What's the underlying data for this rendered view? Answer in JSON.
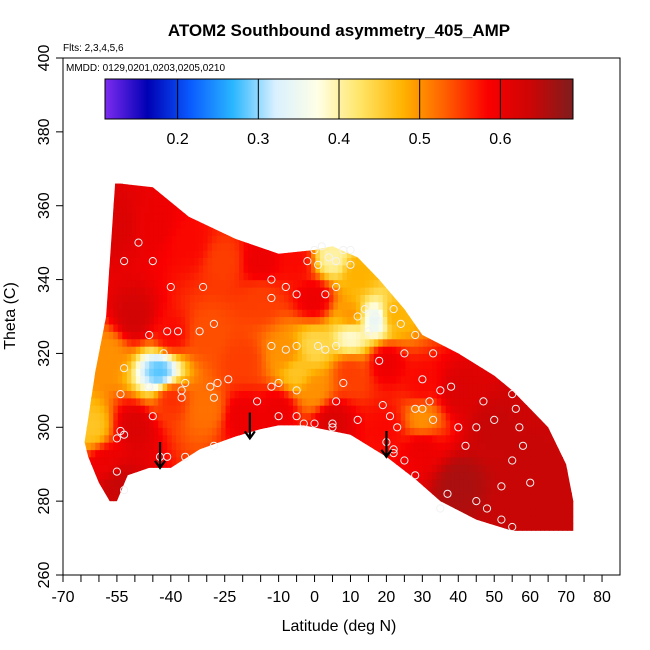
{
  "chart_data": {
    "type": "heatmap",
    "title": "ATOM2 Southbound asymmetry_405_AMP",
    "flights_note": "Flts: 2,3,4,5,6",
    "dates_note": "MMDD: 0129,0201,0203,0205,0210",
    "xlabel": "Latitude (deg N)",
    "ylabel": "Theta (C)",
    "xlim": [
      -70,
      85
    ],
    "ylim": [
      260,
      400
    ],
    "x_ticks": [
      -70,
      -55,
      -40,
      -25,
      -10,
      0,
      10,
      20,
      30,
      40,
      50,
      60,
      70,
      80
    ],
    "x_minor_ticks": [
      -65,
      -60,
      -50,
      -45,
      -35,
      -30,
      -20,
      -15,
      -5,
      5,
      15,
      25,
      35,
      45,
      55,
      65,
      75
    ],
    "y_ticks": [
      260,
      280,
      300,
      320,
      340,
      360,
      380,
      400
    ],
    "colorbar": {
      "min": 0.11,
      "max": 0.69,
      "ticks": [
        0.2,
        0.3,
        0.4,
        0.5,
        0.6
      ],
      "tick_labels": [
        "0.2",
        "0.3",
        "0.4",
        "0.5",
        "0.6"
      ],
      "colors": [
        "#7d2cf0",
        "#0000b4",
        "#0a5aff",
        "#29b6ff",
        "#d9f0ff",
        "#ffffe6",
        "#ffe566",
        "#ffb300",
        "#ff5e00",
        "#fa0000",
        "#cc0505",
        "#7f1d1d"
      ]
    },
    "domain": {
      "top": [
        [
          -55.5,
          366
        ],
        [
          -54,
          366
        ],
        [
          -45,
          365
        ],
        [
          -35,
          357
        ],
        [
          -22,
          351
        ],
        [
          -10,
          347
        ],
        [
          0,
          348
        ],
        [
          5,
          349
        ],
        [
          12,
          346
        ],
        [
          18,
          340
        ],
        [
          25,
          332
        ],
        [
          30,
          325
        ],
        [
          40,
          320
        ],
        [
          50,
          314
        ],
        [
          55,
          310
        ],
        [
          60,
          305
        ],
        [
          65,
          300
        ],
        [
          70,
          290
        ],
        [
          72,
          280
        ],
        [
          72,
          272
        ]
      ],
      "bottom": [
        [
          72,
          272
        ],
        [
          55,
          272
        ],
        [
          45,
          275
        ],
        [
          35,
          280
        ],
        [
          28,
          286
        ],
        [
          20,
          292
        ],
        [
          10,
          298
        ],
        [
          -3,
          300.5
        ],
        [
          -10,
          300.5
        ],
        [
          -15,
          299.5
        ],
        [
          -22,
          297.5
        ],
        [
          -32,
          294
        ],
        [
          -40,
          289
        ],
        [
          -46,
          289
        ],
        [
          -52,
          287
        ],
        [
          -55,
          280
        ],
        [
          -57,
          280
        ],
        [
          -60,
          285
        ],
        [
          -63,
          292
        ],
        [
          -64,
          296
        ],
        [
          -61,
          315
        ],
        [
          -58,
          330
        ],
        [
          -55.5,
          366
        ]
      ]
    },
    "field_anchors": [
      {
        "x": -55,
        "y": 355,
        "v": 0.62
      },
      {
        "x": -45,
        "y": 355,
        "v": 0.6
      },
      {
        "x": -35,
        "y": 350,
        "v": 0.58
      },
      {
        "x": -25,
        "y": 345,
        "v": 0.55
      },
      {
        "x": -15,
        "y": 345,
        "v": 0.6
      },
      {
        "x": -5,
        "y": 345,
        "v": 0.58
      },
      {
        "x": 5,
        "y": 346,
        "v": 0.4
      },
      {
        "x": 12,
        "y": 342,
        "v": 0.48
      },
      {
        "x": -15,
        "y": 335,
        "v": 0.55
      },
      {
        "x": 0,
        "y": 335,
        "v": 0.6
      },
      {
        "x": 10,
        "y": 330,
        "v": 0.5
      },
      {
        "x": 17,
        "y": 329,
        "v": 0.34
      },
      {
        "x": 22,
        "y": 330,
        "v": 0.48
      },
      {
        "x": 10,
        "y": 325,
        "v": 0.38
      },
      {
        "x": 0,
        "y": 322,
        "v": 0.44
      },
      {
        "x": -8,
        "y": 320,
        "v": 0.5
      },
      {
        "x": -20,
        "y": 318,
        "v": 0.55
      },
      {
        "x": -30,
        "y": 325,
        "v": 0.54
      },
      {
        "x": -40,
        "y": 325,
        "v": 0.58
      },
      {
        "x": -50,
        "y": 330,
        "v": 0.63
      },
      {
        "x": -58,
        "y": 320,
        "v": 0.5
      },
      {
        "x": -62,
        "y": 300,
        "v": 0.46
      },
      {
        "x": -58,
        "y": 290,
        "v": 0.6
      },
      {
        "x": -50,
        "y": 300,
        "v": 0.62
      },
      {
        "x": -43,
        "y": 315,
        "v": 0.28
      },
      {
        "x": -40,
        "y": 308,
        "v": 0.56
      },
      {
        "x": -30,
        "y": 305,
        "v": 0.52
      },
      {
        "x": -20,
        "y": 303,
        "v": 0.6
      },
      {
        "x": -10,
        "y": 305,
        "v": 0.6
      },
      {
        "x": 0,
        "y": 310,
        "v": 0.5
      },
      {
        "x": 10,
        "y": 315,
        "v": 0.55
      },
      {
        "x": 20,
        "y": 318,
        "v": 0.6
      },
      {
        "x": 30,
        "y": 312,
        "v": 0.58
      },
      {
        "x": 40,
        "y": 310,
        "v": 0.62
      },
      {
        "x": 50,
        "y": 300,
        "v": 0.64
      },
      {
        "x": 60,
        "y": 290,
        "v": 0.64
      },
      {
        "x": 68,
        "y": 278,
        "v": 0.64
      },
      {
        "x": 40,
        "y": 285,
        "v": 0.66
      },
      {
        "x": 30,
        "y": 295,
        "v": 0.6
      },
      {
        "x": 20,
        "y": 300,
        "v": 0.58
      },
      {
        "x": 5,
        "y": 302,
        "v": 0.62
      },
      {
        "x": 30,
        "y": 302,
        "v": 0.5
      },
      {
        "x": -55,
        "y": 285,
        "v": 0.64
      },
      {
        "x": 55,
        "y": 275,
        "v": 0.64
      },
      {
        "x": -5,
        "y": 315,
        "v": 0.46
      }
    ],
    "points": [
      [
        -53,
        345
      ],
      [
        -49,
        350
      ],
      [
        -45,
        345
      ],
      [
        -40,
        338
      ],
      [
        -31,
        338
      ],
      [
        -38,
        326
      ],
      [
        -41,
        326
      ],
      [
        -46,
        325
      ],
      [
        -42,
        320
      ],
      [
        -28,
        328
      ],
      [
        -32,
        326
      ],
      [
        -27,
        312
      ],
      [
        -24,
        313
      ],
      [
        -29,
        311
      ],
      [
        -36,
        312
      ],
      [
        -37,
        308
      ],
      [
        -46,
        311
      ],
      [
        -45,
        303
      ],
      [
        -53,
        316
      ],
      [
        -54,
        309
      ],
      [
        -55,
        297
      ],
      [
        -54,
        299
      ],
      [
        -53,
        298
      ],
      [
        -55,
        288
      ],
      [
        -53,
        283
      ],
      [
        -41,
        292
      ],
      [
        -43,
        292
      ],
      [
        -36,
        292
      ],
      [
        -28,
        295
      ],
      [
        -16,
        307
      ],
      [
        -12,
        311
      ],
      [
        -10,
        312
      ],
      [
        -8,
        321
      ],
      [
        -12,
        335
      ],
      [
        -12,
        340
      ],
      [
        -8,
        338
      ],
      [
        -5,
        336
      ],
      [
        -2,
        345
      ],
      [
        0,
        348
      ],
      [
        2,
        349
      ],
      [
        4,
        346
      ],
      [
        6,
        345
      ],
      [
        8,
        348
      ],
      [
        10,
        348
      ],
      [
        3,
        336
      ],
      [
        6,
        338
      ],
      [
        -5,
        322
      ],
      [
        1,
        322
      ],
      [
        3,
        321
      ],
      [
        6,
        322
      ],
      [
        12,
        330
      ],
      [
        14,
        332
      ],
      [
        15,
        326
      ],
      [
        17,
        330
      ],
      [
        22,
        332
      ],
      [
        24,
        328
      ],
      [
        25,
        320
      ],
      [
        18,
        318
      ],
      [
        19,
        306
      ],
      [
        21,
        303
      ],
      [
        23,
        300
      ],
      [
        20,
        296
      ],
      [
        22,
        294
      ],
      [
        22,
        293
      ],
      [
        25,
        291
      ],
      [
        -5,
        310
      ],
      [
        -10,
        303
      ],
      [
        -5,
        303
      ],
      [
        5,
        300
      ],
      [
        6,
        307
      ],
      [
        5,
        301
      ],
      [
        8,
        312
      ],
      [
        12,
        302
      ],
      [
        -3,
        301
      ],
      [
        0,
        301
      ],
      [
        28,
        305
      ],
      [
        32,
        307
      ],
      [
        33,
        302
      ],
      [
        35,
        310
      ],
      [
        38,
        311
      ],
      [
        40,
        300
      ],
      [
        47,
        307
      ],
      [
        55,
        309
      ],
      [
        57,
        300
      ],
      [
        58,
        295
      ],
      [
        60,
        285
      ],
      [
        55,
        291
      ],
      [
        52,
        284
      ],
      [
        45,
        280
      ],
      [
        48,
        278
      ],
      [
        52,
        275
      ],
      [
        55,
        273
      ],
      [
        28,
        287
      ],
      [
        35,
        278
      ],
      [
        37,
        282
      ],
      [
        42,
        295
      ],
      [
        45,
        300
      ],
      [
        50,
        302
      ],
      [
        56,
        305
      ],
      [
        30,
        313
      ],
      [
        33,
        320
      ],
      [
        28,
        325
      ],
      [
        30,
        305
      ],
      [
        -37,
        310
      ],
      [
        -28,
        308
      ],
      [
        -12,
        322
      ],
      [
        1,
        344
      ],
      [
        10,
        344
      ]
    ],
    "arrows": [
      {
        "x": -43,
        "y_start": 296,
        "y_end": 289
      },
      {
        "x": -18,
        "y_start": 304,
        "y_end": 297
      },
      {
        "x": 20,
        "y_start": 299,
        "y_end": 292
      }
    ]
  }
}
